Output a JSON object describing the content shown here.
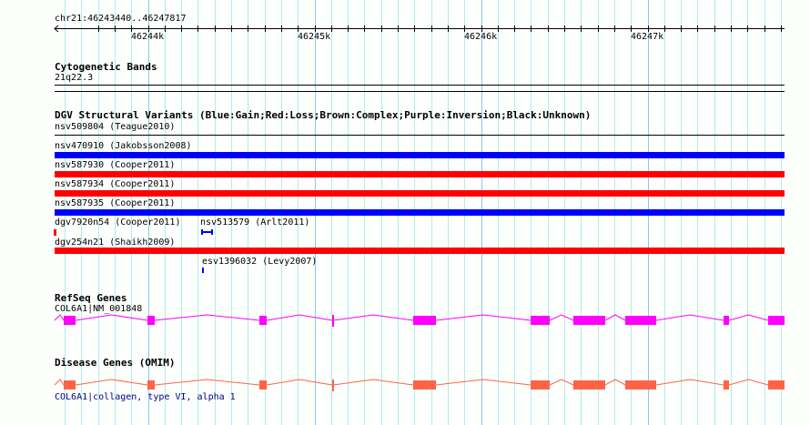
{
  "ruler": {
    "location": "chr21:46243440..46247817",
    "ticks": [
      "46244k",
      "46245k",
      "46246k",
      "46247k"
    ]
  },
  "cytoband": {
    "title": "Cytogenetic Bands",
    "band": "21q22.3"
  },
  "dgv": {
    "title": "DGV Structural Variants (Blue:Gain;Red:Loss;Brown:Complex;Purple:Inversion;Black:Unknown)",
    "features": [
      {
        "label": "nsv509804 (Teague2010)",
        "type": "unknown",
        "color": "#000000"
      },
      {
        "label": "nsv470910 (Jakobsson2008)",
        "type": "gain",
        "color": "#0000ff"
      },
      {
        "label": "nsv587930 (Cooper2011)",
        "type": "loss",
        "color": "#ff0000"
      },
      {
        "label": "nsv587934 (Cooper2011)",
        "type": "loss",
        "color": "#ff0000"
      },
      {
        "label": "nsv587935 (Cooper2011)",
        "type": "gain",
        "color": "#0000ff"
      },
      {
        "label": "dgv7920n54 (Cooper2011)",
        "type": "loss",
        "color": "#ff0000"
      },
      {
        "label": "nsv513579 (Arlt2011)",
        "type": "gain",
        "color": "#0000ff"
      },
      {
        "label": "dgv254n21 (Shaikh2009)",
        "type": "loss",
        "color": "#ff0000"
      },
      {
        "label": "esv1396032 (Levy2007)",
        "type": "gain",
        "color": "#0000ff"
      }
    ]
  },
  "refseq": {
    "title": "RefSeq Genes",
    "gene": "COL6A1|NM_001848",
    "color": "#ff00ff"
  },
  "omim": {
    "title": "Disease Genes (OMIM)",
    "gene": "COL6A1|collagen, type VI, alpha 1",
    "color": "#ff6347",
    "link_color": "#000080"
  }
}
